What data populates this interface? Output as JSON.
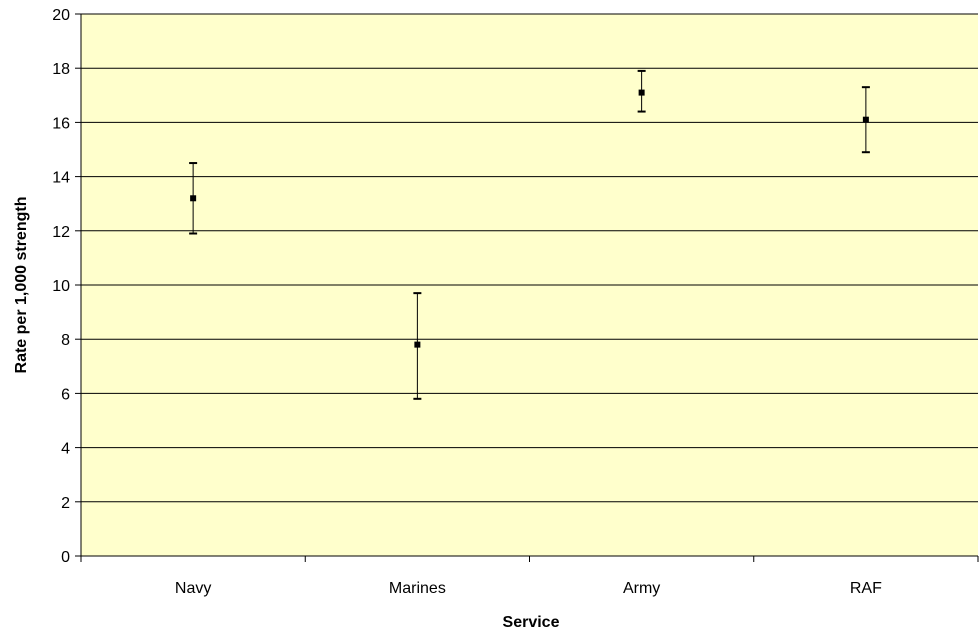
{
  "colors": {
    "plot_background": "#ffffcc",
    "gridline": "#000000",
    "axis": "#000000",
    "marker": "#000000"
  },
  "chart_data": {
    "type": "scatter",
    "title": "",
    "xlabel": "Service",
    "ylabel": "Rate per 1,000 strength",
    "categories": [
      "Navy",
      "Marines",
      "Army",
      "RAF"
    ],
    "series": [
      {
        "values": [
          13.2,
          7.8,
          17.1,
          16.1
        ],
        "error_low": [
          11.9,
          5.8,
          16.4,
          14.9
        ],
        "error_high": [
          14.5,
          9.7,
          17.9,
          17.3
        ]
      }
    ],
    "ylim": [
      0,
      20
    ],
    "yticks": [
      0,
      2,
      4,
      6,
      8,
      10,
      12,
      14,
      16,
      18,
      20
    ],
    "grid": true,
    "legend": "none"
  }
}
